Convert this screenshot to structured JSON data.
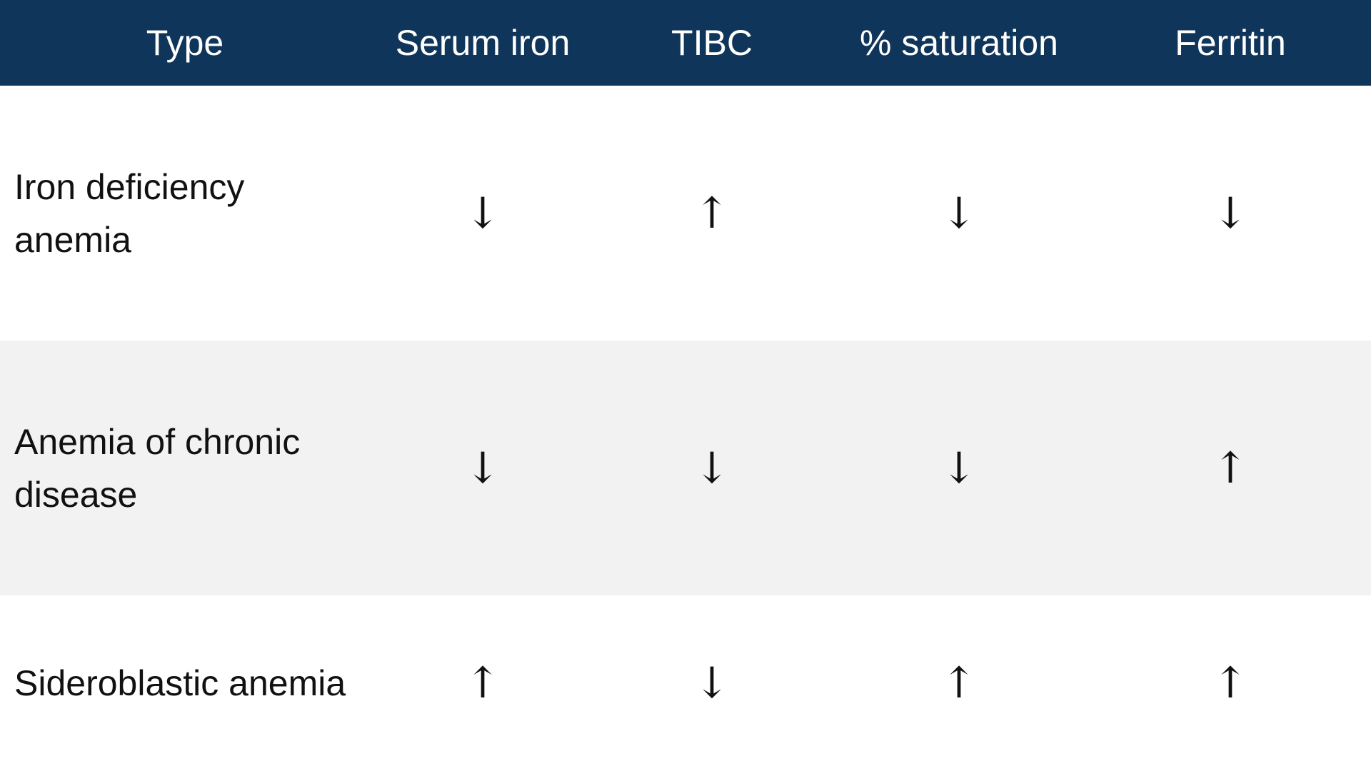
{
  "table": {
    "headers": [
      "Type",
      "Serum iron",
      "TIBC",
      "% saturation",
      "Ferritin"
    ],
    "rows": [
      {
        "type": "Iron deficiency anemia",
        "values": [
          "↓",
          "↑",
          "↓",
          "↓"
        ]
      },
      {
        "type": "Anemia of chronic disease",
        "values": [
          "↓",
          "↓",
          "↓",
          "↑"
        ]
      },
      {
        "type": "Sideroblastic anemia",
        "values": [
          "↑",
          "↓",
          "↑",
          "↑"
        ]
      }
    ]
  },
  "colors": {
    "header_bg": "#10355a",
    "header_text": "#ffffff",
    "stripe_bg": "#f2f2f2"
  }
}
